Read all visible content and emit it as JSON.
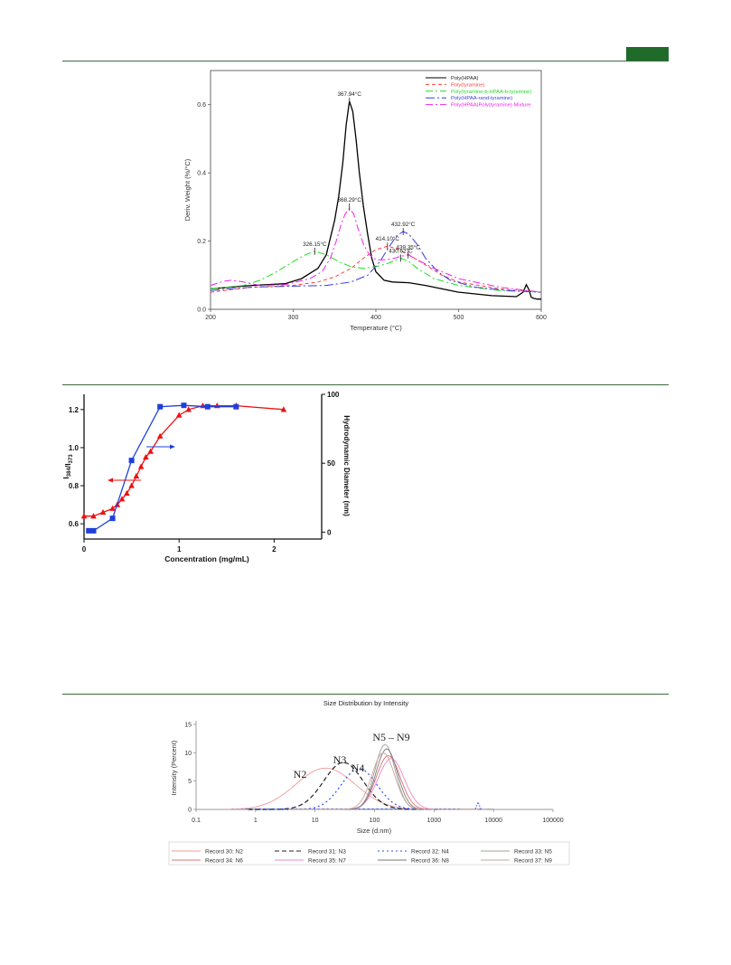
{
  "colors": {
    "rule": "#3b6b3b",
    "badge": "#1f6b2a"
  },
  "chart_data": [
    {
      "type": "line",
      "xlabel": "Temperature (°C)",
      "ylabel": "Deriv. Weight (%/°C)",
      "xlim": [
        200,
        600
      ],
      "ylim": [
        0.0,
        0.7
      ],
      "xticks": [
        "200",
        "300",
        "400",
        "500",
        "600"
      ],
      "yticks": [
        "0.0",
        "0.2",
        "0.4",
        "0.6"
      ],
      "legend_position": "top-right",
      "series": [
        {
          "name": "Poly(HPAA)",
          "color": "#000000",
          "dash": "",
          "x": [
            200,
            250,
            290,
            310,
            330,
            340,
            350,
            355,
            360,
            364,
            368,
            372,
            376,
            380,
            385,
            390,
            395,
            400,
            410,
            420,
            440,
            460,
            480,
            500,
            540,
            570,
            578,
            582,
            585,
            588,
            591,
            595,
            600
          ],
          "y": [
            0.06,
            0.07,
            0.075,
            0.09,
            0.12,
            0.16,
            0.26,
            0.33,
            0.43,
            0.54,
            0.61,
            0.58,
            0.5,
            0.4,
            0.3,
            0.22,
            0.15,
            0.11,
            0.085,
            0.08,
            0.078,
            0.07,
            0.06,
            0.05,
            0.04,
            0.037,
            0.05,
            0.072,
            0.058,
            0.035,
            0.032,
            0.03,
            0.03
          ]
        },
        {
          "name": "Poly(tyramine)",
          "color": "#ff4040",
          "dash": "4,3",
          "x": [
            200,
            250,
            300,
            330,
            350,
            370,
            385,
            400,
            414,
            425,
            440,
            460,
            480,
            500,
            550,
            600
          ],
          "y": [
            0.05,
            0.065,
            0.07,
            0.08,
            0.095,
            0.12,
            0.15,
            0.175,
            0.185,
            0.178,
            0.16,
            0.13,
            0.1,
            0.08,
            0.06,
            0.05
          ]
        },
        {
          "name": "Poly(tyramine-b-HPAA-b-tyramine)",
          "color": "#22dd22",
          "dash": "8,3,2,3",
          "x": [
            200,
            240,
            260,
            280,
            300,
            315,
            326,
            340,
            355,
            370,
            385,
            400,
            415,
            430,
            440,
            450,
            470,
            500,
            550,
            600
          ],
          "y": [
            0.06,
            0.07,
            0.085,
            0.11,
            0.14,
            0.16,
            0.17,
            0.16,
            0.14,
            0.125,
            0.12,
            0.125,
            0.135,
            0.15,
            0.14,
            0.12,
            0.09,
            0.07,
            0.055,
            0.05
          ]
        },
        {
          "name": "Poly(HPAA-rand-tyramine)",
          "color": "#3b3bdd",
          "dash": "10,3,2,3",
          "x": [
            200,
            250,
            300,
            340,
            370,
            390,
            405,
            415,
            425,
            433,
            440,
            450,
            460,
            475,
            490,
            520,
            560,
            600
          ],
          "y": [
            0.055,
            0.065,
            0.068,
            0.07,
            0.08,
            0.1,
            0.14,
            0.18,
            0.215,
            0.228,
            0.22,
            0.19,
            0.15,
            0.11,
            0.085,
            0.065,
            0.055,
            0.05
          ]
        },
        {
          "name": "Poly(HPAA)Poly(tyramine) Mixture",
          "color": "#ee22ee",
          "dash": "8,3,2,3",
          "x": [
            200,
            215,
            225,
            240,
            260,
            290,
            320,
            335,
            345,
            352,
            358,
            363,
            368,
            373,
            378,
            385,
            392,
            400,
            410,
            420,
            430,
            439,
            450,
            470,
            500,
            550,
            600
          ],
          "y": [
            0.07,
            0.082,
            0.085,
            0.08,
            0.07,
            0.072,
            0.09,
            0.11,
            0.15,
            0.2,
            0.25,
            0.28,
            0.295,
            0.28,
            0.24,
            0.19,
            0.16,
            0.145,
            0.145,
            0.148,
            0.155,
            0.16,
            0.145,
            0.12,
            0.09,
            0.065,
            0.05
          ]
        }
      ],
      "annotations": [
        {
          "text": "367.94°C",
          "x": 368,
          "y": 0.61
        },
        {
          "text": "368.29°C",
          "x": 368,
          "y": 0.3
        },
        {
          "text": "326.15°C",
          "x": 326,
          "y": 0.17
        },
        {
          "text": "414.10°C",
          "x": 414,
          "y": 0.185
        },
        {
          "text": "432.92°C",
          "x": 433,
          "y": 0.228
        },
        {
          "text": "439.35°C",
          "x": 439,
          "y": 0.16
        },
        {
          "text": "430.62°C",
          "x": 430,
          "y": 0.15
        }
      ]
    },
    {
      "type": "line",
      "xlabel": "Concentration (mg/mL)",
      "ylabel": "I384/I373",
      "ylabel_right": "Hydrodynamic Diameter (nm)",
      "xlim": [
        0,
        2.5
      ],
      "ylim": [
        0.52,
        1.28
      ],
      "ylim_right": [
        -5,
        100
      ],
      "xticks": [
        "0",
        "1",
        "2"
      ],
      "yticks": [
        "0.6",
        "0.8",
        "1.0",
        "1.2"
      ],
      "yticks_right": [
        "0",
        "50",
        "100"
      ],
      "series": [
        {
          "name": "",
          "axis": "left",
          "color": "#ee1111",
          "marker": "triangle",
          "x": [
            0,
            0.1,
            0.2,
            0.3,
            0.35,
            0.4,
            0.45,
            0.5,
            0.55,
            0.6,
            0.65,
            0.7,
            0.8,
            1.0,
            1.1,
            1.25,
            1.4,
            1.6,
            2.1
          ],
          "y": [
            0.64,
            0.64,
            0.66,
            0.68,
            0.7,
            0.73,
            0.76,
            0.8,
            0.85,
            0.9,
            0.95,
            0.98,
            1.06,
            1.17,
            1.2,
            1.22,
            1.22,
            1.22,
            1.2
          ]
        },
        {
          "name": "",
          "axis": "right",
          "color": "#1f3fdd",
          "marker": "square",
          "x": [
            0.05,
            0.1,
            0.3,
            0.5,
            0.8,
            1.05,
            1.3,
            1.6
          ],
          "y": [
            1,
            1,
            10,
            52,
            91,
            92,
            91,
            91
          ]
        }
      ]
    },
    {
      "type": "line",
      "title": "Size Distribution by Intensity",
      "xlabel": "Size (d.nm)",
      "ylabel": "Intensity (Percent)",
      "xscale": "log",
      "xlim": [
        0.1,
        100000
      ],
      "ylim": [
        0,
        15
      ],
      "xticks": [
        "0.1",
        "1",
        "10",
        "100",
        "1000",
        "10000",
        "100000"
      ],
      "yticks": [
        "0",
        "5",
        "10",
        "15"
      ],
      "annotations": [
        "N2",
        "N3",
        "N4",
        "N5 – N9"
      ],
      "series": [
        {
          "name": "Record 30: N2",
          "color": "#f29a9a",
          "dash": "",
          "peak_size": 15,
          "peak": 7.3,
          "sigma": 0.5
        },
        {
          "name": "Record 31: N3",
          "color": "#222222",
          "dash": "5,3",
          "peak_size": 30,
          "peak": 8.3,
          "sigma": 0.33
        },
        {
          "name": "Record 32: N4",
          "color": "#2f4fff",
          "dash": "2,3",
          "peak_size": 55,
          "peak": 7.2,
          "sigma": 0.3
        },
        {
          "name": "Record 33: N5",
          "color": "#9aa59a",
          "dash": "",
          "peak_size": 150,
          "peak": 11.5,
          "sigma": 0.17
        },
        {
          "name": "Record 34: N6",
          "color": "#e07070",
          "dash": "",
          "peak_size": 170,
          "peak": 9.5,
          "sigma": 0.2
        },
        {
          "name": "Record 35: N7",
          "color": "#ee88cc",
          "dash": "",
          "peak_size": 190,
          "peak": 9.0,
          "sigma": 0.22
        },
        {
          "name": "Record 36: N8",
          "color": "#7a7a7a",
          "dash": "",
          "peak_size": 160,
          "peak": 10.7,
          "sigma": 0.18
        },
        {
          "name": "Record 37: N9",
          "color": "#c9a3a3",
          "dash": "",
          "peak_size": 140,
          "peak": 10.0,
          "sigma": 0.19
        }
      ],
      "artifact": {
        "size": 5500,
        "peak": 1.3
      }
    }
  ]
}
